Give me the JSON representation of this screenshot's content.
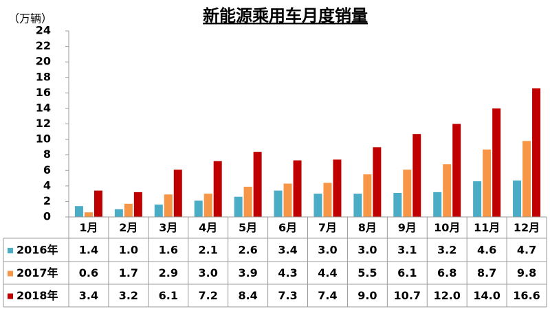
{
  "chart_data": {
    "type": "bar",
    "title": "新能源乘用车月度销量",
    "y_unit": "（万辆）",
    "categories": [
      "1月",
      "2月",
      "3月",
      "4月",
      "5月",
      "6月",
      "7月",
      "8月",
      "9月",
      "10月",
      "11月",
      "12月"
    ],
    "series": [
      {
        "name": "2016年",
        "color": "#4bacc6",
        "values": [
          1.4,
          1.0,
          1.6,
          2.1,
          2.6,
          3.4,
          3.0,
          3.0,
          3.1,
          3.2,
          4.6,
          4.7
        ],
        "value_labels": [
          "1.4",
          "1.0",
          "1.6",
          "2.1",
          "2.6",
          "3.4",
          "3.0",
          "3.0",
          "3.1",
          "3.2",
          "4.6",
          "4.7"
        ]
      },
      {
        "name": "2017年",
        "color": "#f79646",
        "values": [
          0.6,
          1.7,
          2.9,
          3.0,
          3.9,
          4.3,
          4.4,
          5.5,
          6.1,
          6.8,
          8.7,
          9.8
        ],
        "value_labels": [
          "0.6",
          "1.7",
          "2.9",
          "3.0",
          "3.9",
          "4.3",
          "4.4",
          "5.5",
          "6.1",
          "6.8",
          "8.7",
          "9.8"
        ]
      },
      {
        "name": "2018年",
        "color": "#c00000",
        "values": [
          3.4,
          3.2,
          6.1,
          7.2,
          8.4,
          7.3,
          7.4,
          9.0,
          10.7,
          12.0,
          14.0,
          16.6
        ],
        "value_labels": [
          "3.4",
          "3.2",
          "6.1",
          "7.2",
          "8.4",
          "7.3",
          "7.4",
          "9.0",
          "10.7",
          "12.0",
          "14.0",
          "16.6"
        ]
      }
    ],
    "ylim": [
      0,
      24
    ],
    "yticks": [
      0,
      2,
      4,
      6,
      8,
      10,
      12,
      14,
      16,
      18,
      20,
      22,
      24
    ]
  }
}
